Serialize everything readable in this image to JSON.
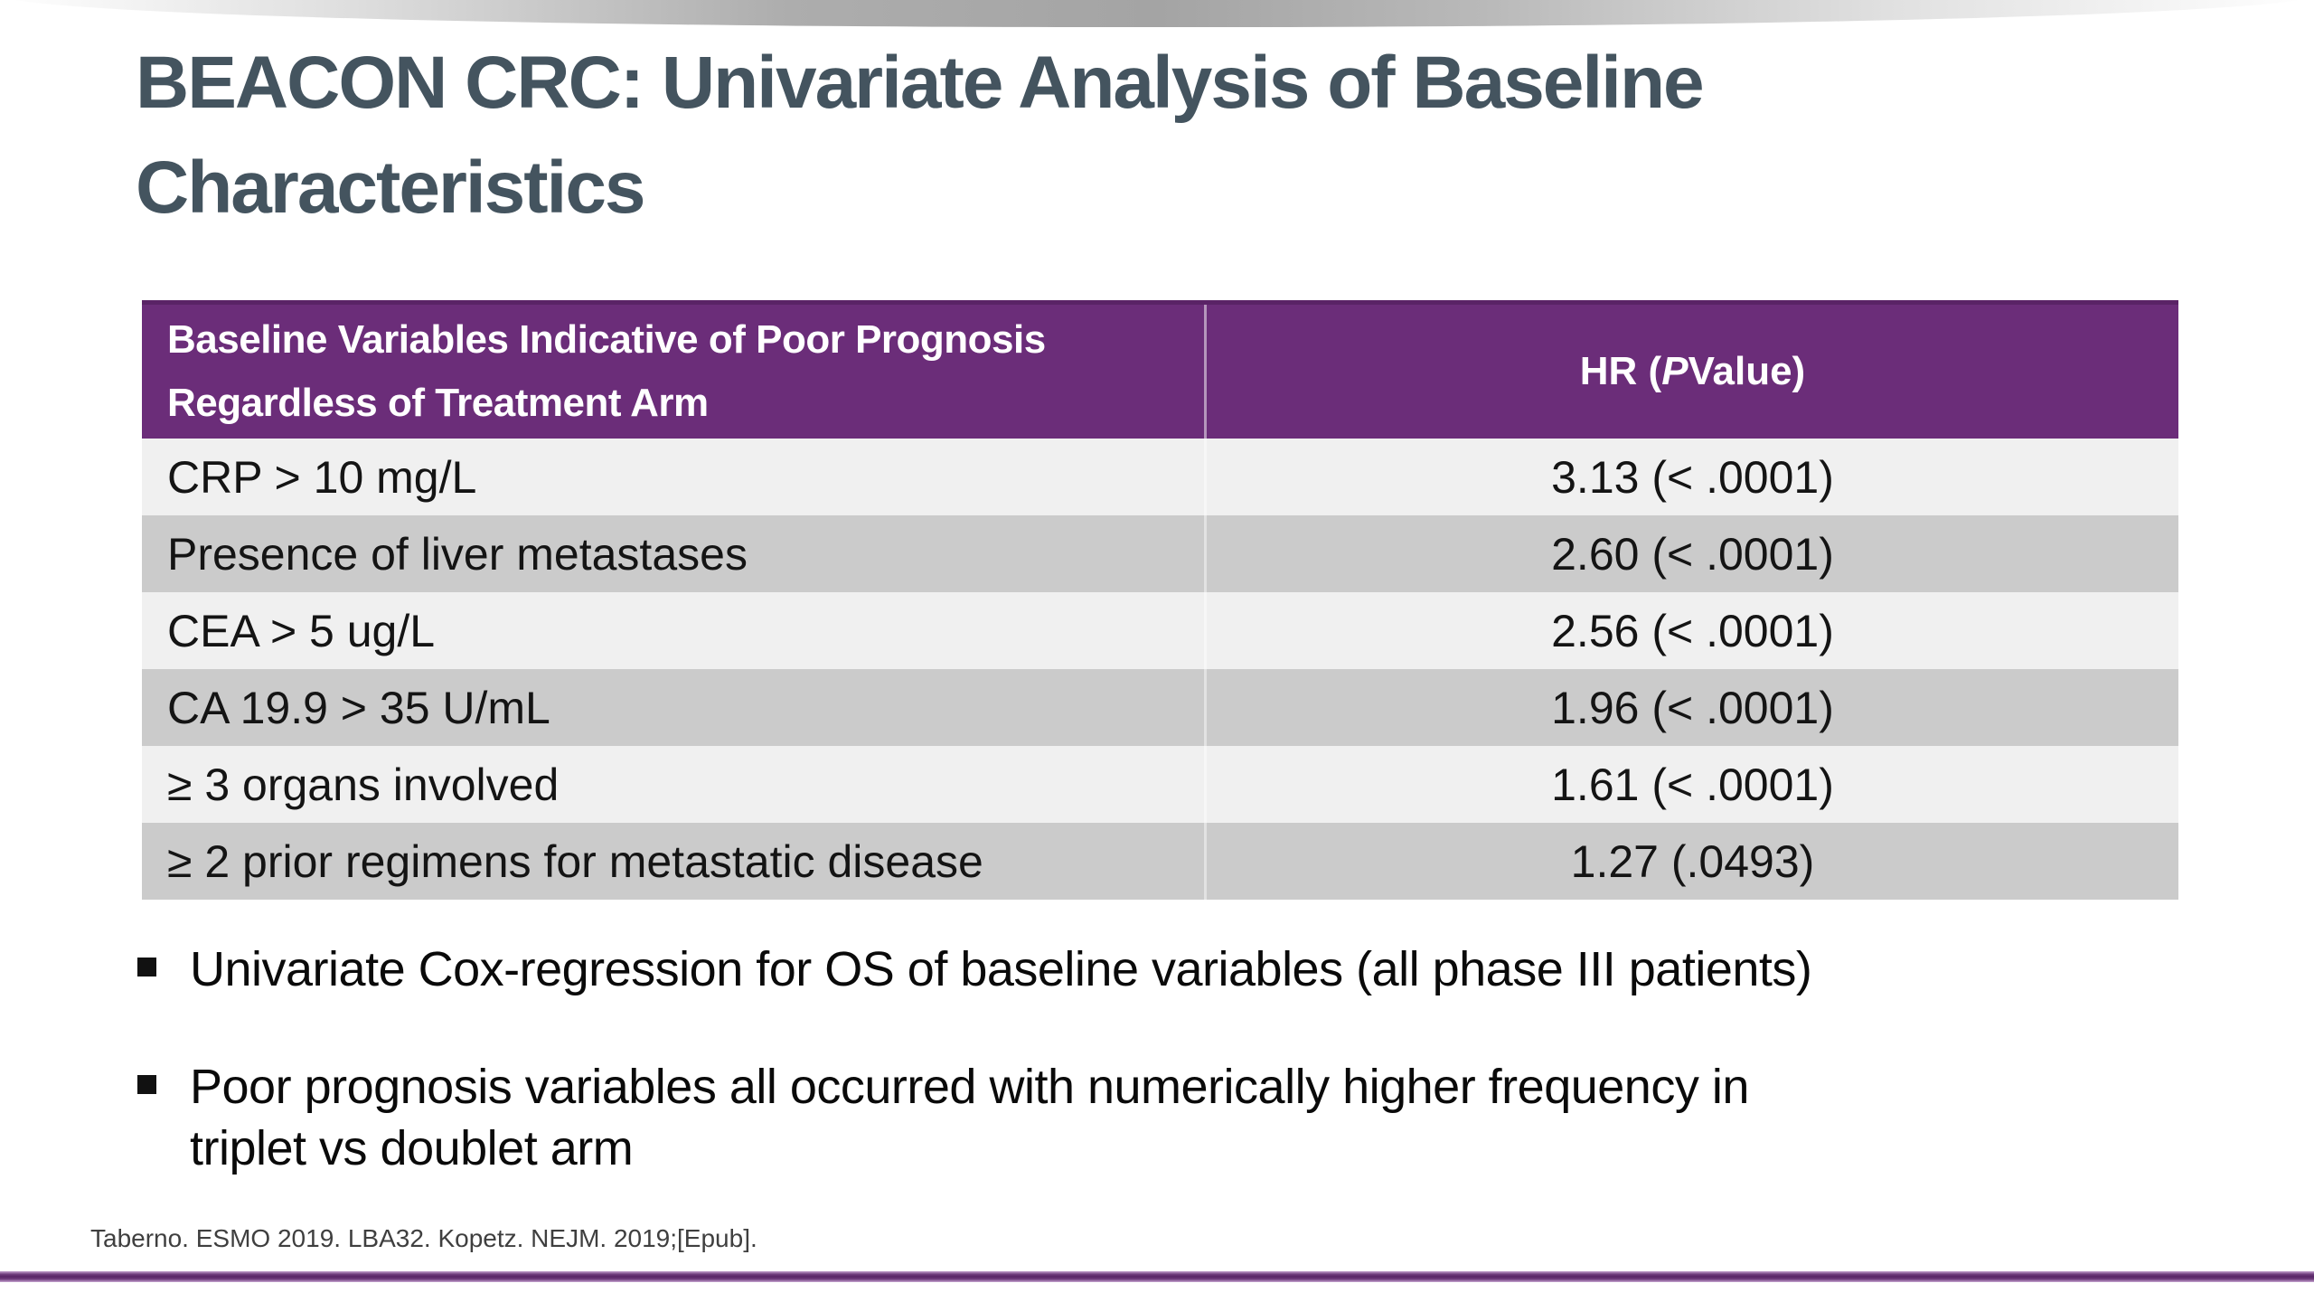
{
  "slide": {
    "title": "BEACON CRC: Univariate Analysis of Baseline Characteristics",
    "table": {
      "header": {
        "variable_column": "Baseline Variables Indicative of Poor Prognosis Regardless of Treatment Arm",
        "hr_column": {
          "pre": "HR (",
          "italic": "P",
          "post": " Value)"
        }
      },
      "rows": [
        {
          "variable": "CRP > 10 mg/L",
          "hr": "3.13 (< .0001)"
        },
        {
          "variable": "Presence of liver metastases",
          "hr": "2.60 (< .0001)"
        },
        {
          "variable": "CEA > 5 ug/L",
          "hr": "2.56 (< .0001)"
        },
        {
          "variable": "CA 19.9 > 35 U/mL",
          "hr": "1.96 (< .0001)"
        },
        {
          "variable": "≥ 3 organs involved",
          "hr": "1.61 (< .0001)"
        },
        {
          "variable": "≥ 2 prior regimens for metastatic disease",
          "hr": "1.27 (.0493)"
        }
      ]
    },
    "bullets": [
      {
        "line1": "Univariate Cox-regression for OS of baseline variables (all phase III patients)"
      },
      {
        "line1": "Poor prognosis variables all occurred with numerically higher frequency in",
        "line2": "triplet vs doublet arm"
      }
    ],
    "footnote": "Taberno. ESMO 2019. LBA32. Kopetz. NEJM. 2019;[Epub].",
    "colors": {
      "title_text": "#44545F",
      "table_header_bg": "#6B2D79",
      "table_header_text": "#FFFFFF",
      "row_gray": "#CBCBCB",
      "row_light": "#F0F0F0",
      "accent_line": "#582566",
      "body_text": "#0A0A0A",
      "footnote_text": "#3F3F3F"
    }
  }
}
